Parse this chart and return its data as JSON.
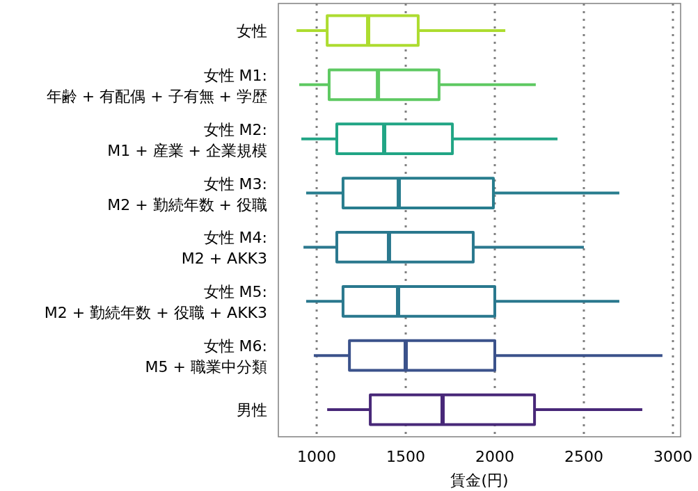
{
  "chart_data": {
    "type": "box",
    "orientation": "horizontal",
    "xlabel": "賃金(円)",
    "categories": [
      "女性",
      "女性 M1:\n年齢 + 有配偶 + 子有無 + 学歴",
      "女性 M2:\nM1 + 産業 + 企業規模",
      "女性 M3:\nM2 + 勤続年数 + 役職",
      "女性 M4:\nM2 + AKK3",
      "女性 M5:\nM2 + 勤続年数 + 役職 + AKK3",
      "女性 M6:\nM5 + 職業中分類",
      "男性"
    ],
    "boxes": [
      {
        "low": 887,
        "q1": 1059,
        "median": 1289,
        "q3": 1570,
        "high": 2059
      },
      {
        "low": 902,
        "q1": 1070,
        "median": 1344,
        "q3": 1687,
        "high": 2230
      },
      {
        "low": 914,
        "q1": 1113,
        "median": 1379,
        "q3": 1762,
        "high": 2352
      },
      {
        "low": 941,
        "q1": 1148,
        "median": 1461,
        "q3": 1992,
        "high": 2699
      },
      {
        "low": 926,
        "q1": 1113,
        "median": 1406,
        "q3": 1879,
        "high": 2500
      },
      {
        "low": 941,
        "q1": 1148,
        "median": 1457,
        "q3": 2000,
        "high": 2699
      },
      {
        "low": 984,
        "q1": 1184,
        "median": 1500,
        "q3": 2000,
        "high": 2941
      },
      {
        "low": 1059,
        "q1": 1301,
        "median": 1707,
        "q3": 2223,
        "high": 2828
      }
    ],
    "colors": [
      "#addc30",
      "#5ec962",
      "#21a585",
      "#287d8e",
      "#2a788e",
      "#2a788e",
      "#3b528b",
      "#482878"
    ],
    "xlim": [
      785,
      3043
    ],
    "xticks": [
      1000,
      1500,
      2000,
      2500,
      3000
    ],
    "grid": "x"
  }
}
